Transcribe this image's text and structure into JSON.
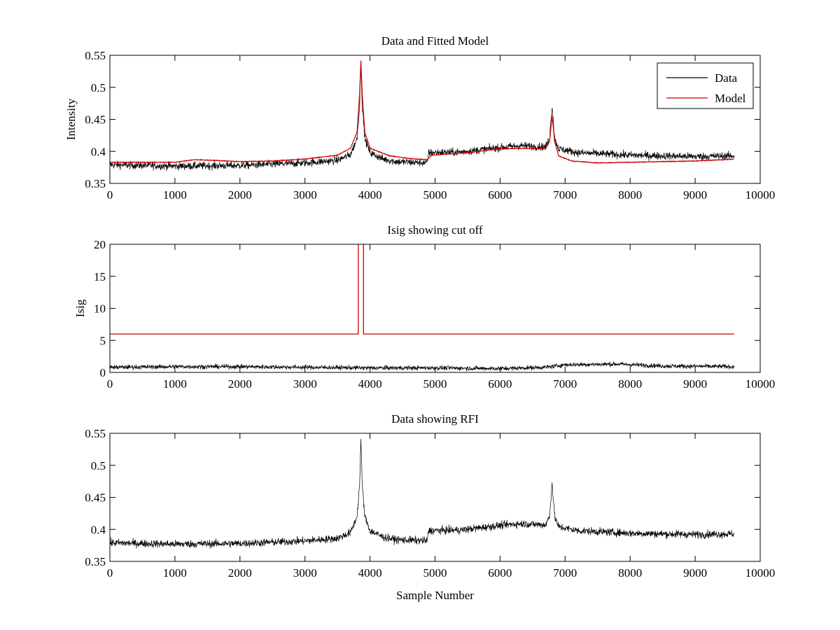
{
  "chart_data": [
    {
      "type": "line",
      "title": "Data and Fitted Model",
      "xlabel": "",
      "ylabel": "Intensity",
      "xlim": [
        0,
        10000
      ],
      "ylim": [
        0.35,
        0.55
      ],
      "xticks": [
        0,
        1000,
        2000,
        3000,
        4000,
        5000,
        6000,
        7000,
        8000,
        9000,
        10000
      ],
      "xtick_labels": [
        "0",
        "1000",
        "2000",
        "3000",
        "4000",
        "5000",
        "6000",
        "7000",
        "8000",
        "9000",
        "10000"
      ],
      "yticks": [
        0.35,
        0.4,
        0.45,
        0.5,
        0.55
      ],
      "ytick_labels": [
        "0.35",
        "0.4",
        "0.45",
        "0.5",
        "0.55"
      ],
      "grid": false,
      "legend": {
        "position": "top-right",
        "entries": [
          "Data",
          "Model"
        ]
      },
      "series": [
        {
          "name": "Data",
          "color": "#000000",
          "noise": 0.006,
          "points": [
            [
              0,
              0.379
            ],
            [
              1000,
              0.377
            ],
            [
              2000,
              0.378
            ],
            [
              3000,
              0.382
            ],
            [
              3500,
              0.386
            ],
            [
              3700,
              0.395
            ],
            [
              3800,
              0.42
            ],
            [
              3840,
              0.47
            ],
            [
              3860,
              0.54
            ],
            [
              3880,
              0.47
            ],
            [
              3920,
              0.42
            ],
            [
              4000,
              0.398
            ],
            [
              4200,
              0.388
            ],
            [
              4400,
              0.384
            ],
            [
              4880,
              0.382
            ],
            [
              4900,
              0.398
            ],
            [
              5400,
              0.399
            ],
            [
              5900,
              0.405
            ],
            [
              6300,
              0.409
            ],
            [
              6700,
              0.407
            ],
            [
              6760,
              0.42
            ],
            [
              6800,
              0.472
            ],
            [
              6840,
              0.42
            ],
            [
              6900,
              0.404
            ],
            [
              7200,
              0.398
            ],
            [
              8000,
              0.394
            ],
            [
              9000,
              0.392
            ],
            [
              9600,
              0.393
            ]
          ]
        },
        {
          "name": "Model",
          "color": "#cc0000",
          "noise": 0.0005,
          "points": [
            [
              0,
              0.383
            ],
            [
              1000,
              0.383
            ],
            [
              1300,
              0.387
            ],
            [
              1600,
              0.386
            ],
            [
              2000,
              0.384
            ],
            [
              2500,
              0.385
            ],
            [
              3000,
              0.388
            ],
            [
              3500,
              0.394
            ],
            [
              3700,
              0.405
            ],
            [
              3800,
              0.43
            ],
            [
              3840,
              0.49
            ],
            [
              3860,
              0.542
            ],
            [
              3880,
              0.49
            ],
            [
              3920,
              0.43
            ],
            [
              4000,
              0.405
            ],
            [
              4300,
              0.393
            ],
            [
              4600,
              0.389
            ],
            [
              4880,
              0.387
            ],
            [
              4950,
              0.394
            ],
            [
              5500,
              0.398
            ],
            [
              6000,
              0.404
            ],
            [
              6500,
              0.405
            ],
            [
              6700,
              0.404
            ],
            [
              6760,
              0.415
            ],
            [
              6800,
              0.455
            ],
            [
              6840,
              0.415
            ],
            [
              6900,
              0.393
            ],
            [
              7100,
              0.385
            ],
            [
              7500,
              0.382
            ],
            [
              8000,
              0.383
            ],
            [
              9000,
              0.385
            ],
            [
              9600,
              0.388
            ]
          ]
        }
      ]
    },
    {
      "type": "line",
      "title": "Isig showing cut off",
      "xlabel": "",
      "ylabel": "Isig",
      "xlim": [
        0,
        10000
      ],
      "ylim": [
        0,
        20
      ],
      "xticks": [
        0,
        1000,
        2000,
        3000,
        4000,
        5000,
        6000,
        7000,
        8000,
        9000,
        10000
      ],
      "xtick_labels": [
        "0",
        "1000",
        "2000",
        "3000",
        "4000",
        "5000",
        "6000",
        "7000",
        "8000",
        "9000",
        "10000"
      ],
      "yticks": [
        0,
        5,
        10,
        15,
        20
      ],
      "ytick_labels": [
        "0",
        "5",
        "10",
        "15",
        "20"
      ],
      "grid": false,
      "series": [
        {
          "name": "",
          "color": "#000000",
          "noise": 0.35,
          "points": [
            [
              0,
              0.8
            ],
            [
              1000,
              0.9
            ],
            [
              2000,
              0.9
            ],
            [
              3000,
              0.8
            ],
            [
              4000,
              0.7
            ],
            [
              5000,
              0.7
            ],
            [
              6000,
              0.6
            ],
            [
              6700,
              0.8
            ],
            [
              7000,
              1.2
            ],
            [
              7800,
              1.3
            ],
            [
              8500,
              1.0
            ],
            [
              9600,
              0.9
            ]
          ]
        },
        {
          "name": "",
          "color": "#cc0000",
          "noise": 0,
          "points": [
            [
              0,
              6
            ],
            [
              3820,
              6
            ],
            [
              3820,
              20.5
            ],
            [
              3900,
              20.5
            ],
            [
              3900,
              6
            ],
            [
              9600,
              6
            ]
          ]
        }
      ]
    },
    {
      "type": "line",
      "title": "Data showing RFI",
      "xlabel": "Sample Number",
      "ylabel": "",
      "xlim": [
        0,
        10000
      ],
      "ylim": [
        0.35,
        0.55
      ],
      "xticks": [
        0,
        1000,
        2000,
        3000,
        4000,
        5000,
        6000,
        7000,
        8000,
        9000,
        10000
      ],
      "xtick_labels": [
        "0",
        "1000",
        "2000",
        "3000",
        "4000",
        "5000",
        "6000",
        "7000",
        "8000",
        "9000",
        "10000"
      ],
      "yticks": [
        0.35,
        0.4,
        0.45,
        0.5,
        0.55
      ],
      "ytick_labels": [
        "0.35",
        "0.4",
        "0.45",
        "0.5",
        "0.55"
      ],
      "grid": false,
      "series": [
        {
          "name": "",
          "color": "#000000",
          "noise": 0.006,
          "points": [
            [
              0,
              0.379
            ],
            [
              1000,
              0.377
            ],
            [
              2000,
              0.378
            ],
            [
              3000,
              0.382
            ],
            [
              3500,
              0.386
            ],
            [
              3700,
              0.395
            ],
            [
              3800,
              0.42
            ],
            [
              3840,
              0.47
            ],
            [
              3860,
              0.54
            ],
            [
              3880,
              0.47
            ],
            [
              3920,
              0.42
            ],
            [
              4000,
              0.398
            ],
            [
              4200,
              0.388
            ],
            [
              4400,
              0.384
            ],
            [
              4880,
              0.382
            ],
            [
              4900,
              0.398
            ],
            [
              5400,
              0.399
            ],
            [
              5900,
              0.405
            ],
            [
              6300,
              0.409
            ],
            [
              6700,
              0.407
            ],
            [
              6760,
              0.42
            ],
            [
              6800,
              0.472
            ],
            [
              6840,
              0.42
            ],
            [
              6900,
              0.404
            ],
            [
              7200,
              0.398
            ],
            [
              8000,
              0.394
            ],
            [
              9000,
              0.392
            ],
            [
              9600,
              0.393
            ]
          ]
        }
      ]
    }
  ]
}
